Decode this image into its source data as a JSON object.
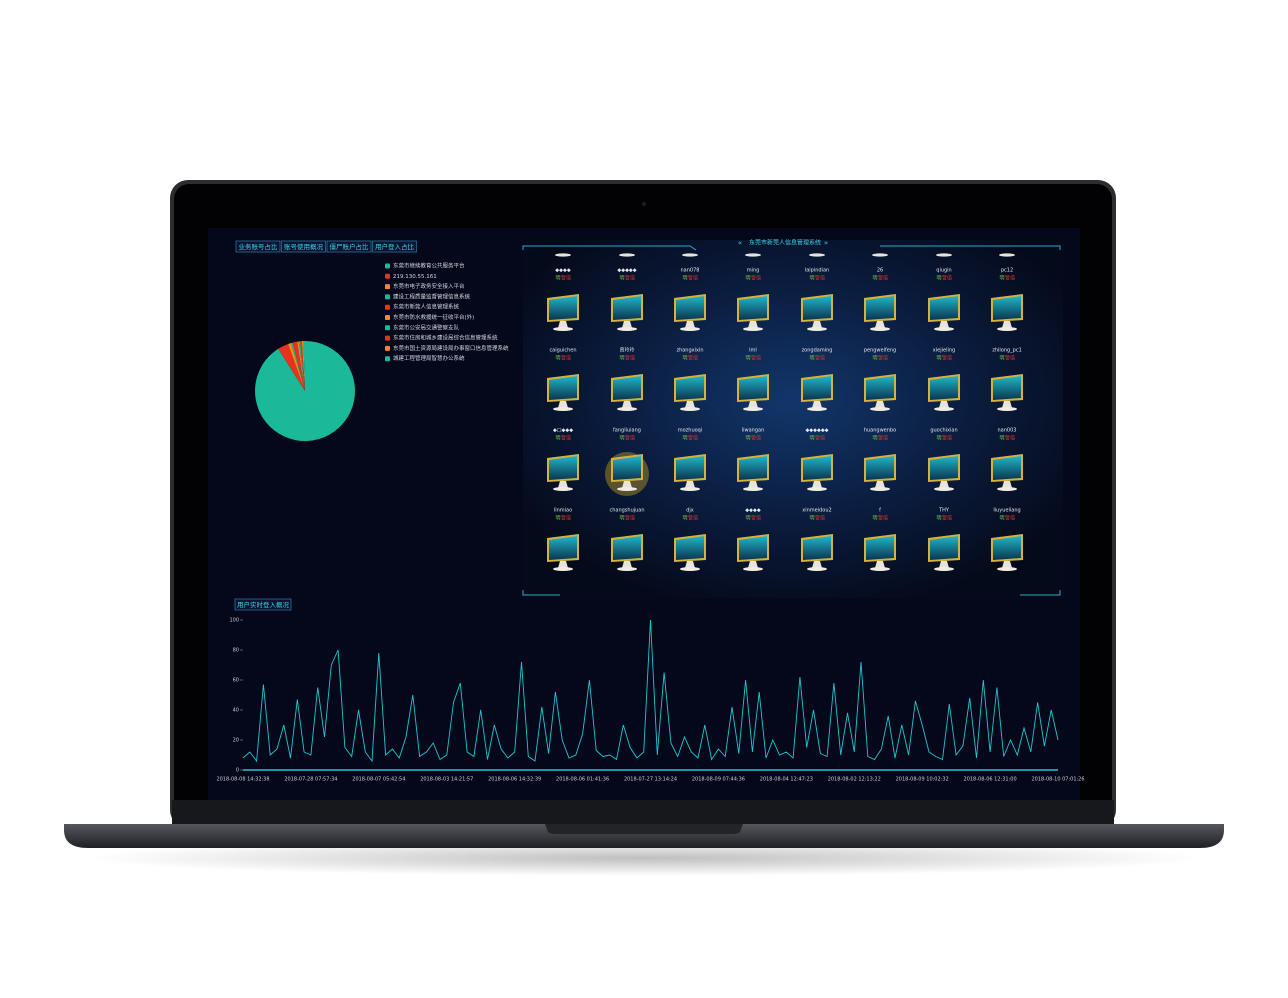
{
  "tabs": [
    "业务账号占比",
    "账号使用概况",
    "僵尸账户占比",
    "用户登入占比"
  ],
  "panel": {
    "title": "东莞市新莞人信息管理系统",
    "status_flag": "明",
    "status_alert": "警值",
    "computers": [
      "◆◆◆◆",
      "◆◆◆◆◆",
      "nan078",
      "ming",
      "laipindian",
      "26",
      "qiugin",
      "pc12",
      "caiguichen",
      "曾玲玲",
      "zhangxixin",
      "lml",
      "zongdaming",
      "pengweifeng",
      "xiejieling",
      "zhilong_pc1",
      "◆□◆◆◆",
      "fangliuiang",
      "mozhuoqi",
      "liwangan",
      "◆◆◆◆◆◆",
      "huangwenbo",
      "guochixian",
      "nan003",
      "linmiao",
      "changshujuan",
      "djx",
      "◆◆◆◆",
      "xinmeidou2",
      "f",
      "THY",
      "liuyueliang"
    ]
  },
  "chart_data": [
    {
      "type": "pie",
      "categories": [
        "东莞市继续教育公共服务平台",
        "219.130.55.161",
        "东莞市电子政务安全接入平台",
        "建设工程质量监督管理信息系统",
        "东莞市新莞人信息管理系统",
        "东莞市防水救援统一征收平台(外)",
        "东莞市公安局交通警察支队",
        "东莞市住房和城乡建设局综合信息管理系统",
        "东莞市国土资源局建设局办事窗口信息管理系统",
        "城建工程管理局智慧办公系统"
      ],
      "values": [
        91,
        3.5,
        1,
        0.5,
        1.5,
        0.5,
        0.5,
        0.5,
        0.5,
        0.5
      ],
      "colors": [
        "#1ab99a",
        "#e8321e",
        "#f08c1a",
        "#1ab99a",
        "#e8321e",
        "#f08c1a",
        "#1ab99a",
        "#e8321e",
        "#f08c1a",
        "#1ab99a"
      ]
    },
    {
      "type": "line",
      "title": "用户实时登入概况",
      "color": "#1fc8d0",
      "ylim": [
        0,
        100
      ],
      "yticks": [
        0,
        20,
        40,
        60,
        80,
        100
      ],
      "categories": [
        "2018-08-08 14:32:38",
        null,
        null,
        null,
        null,
        null,
        null,
        null,
        null,
        null,
        "2018-07-28 07:57:34",
        null,
        null,
        null,
        null,
        null,
        null,
        null,
        null,
        null,
        "2018-08-07 05:42:54",
        null,
        null,
        null,
        null,
        null,
        null,
        null,
        null,
        null,
        "2018-08-03 14:21:57",
        null,
        null,
        null,
        null,
        null,
        null,
        null,
        null,
        null,
        "2018-08-06 14:32:39",
        null,
        null,
        null,
        null,
        null,
        null,
        null,
        null,
        null,
        "2018-08-06 01:41:36",
        null,
        null,
        null,
        null,
        null,
        null,
        null,
        null,
        null,
        "2018-07-27 13:14:24",
        null,
        null,
        null,
        null,
        null,
        null,
        null,
        null,
        null,
        "2018-08-09 07:44:36",
        null,
        null,
        null,
        null,
        null,
        null,
        null,
        null,
        null,
        "2018-08-04 12:47:23",
        null,
        null,
        null,
        null,
        null,
        null,
        null,
        null,
        null,
        "2018-08-02 12:13:22",
        null,
        null,
        null,
        null,
        null,
        null,
        null,
        null,
        null,
        "2018-08-09 10:02:32",
        null,
        null,
        null,
        null,
        null,
        null,
        null,
        null,
        null,
        "2018-08-06 12:31:00",
        null,
        null,
        null,
        null,
        null,
        null,
        null,
        null,
        null,
        "2018-08-10 07:01:26"
      ],
      "values": [
        8,
        12,
        6,
        57,
        10,
        14,
        30,
        8,
        47,
        12,
        10,
        55,
        22,
        70,
        80,
        15,
        9,
        40,
        12,
        6,
        78,
        10,
        14,
        8,
        22,
        50,
        9,
        12,
        18,
        7,
        10,
        45,
        58,
        12,
        9,
        40,
        7,
        30,
        14,
        8,
        12,
        72,
        9,
        6,
        42,
        11,
        52,
        20,
        8,
        10,
        24,
        60,
        13,
        9,
        10,
        7,
        30,
        15,
        8,
        12,
        100,
        10,
        65,
        18,
        9,
        22,
        12,
        8,
        30,
        7,
        14,
        9,
        42,
        11,
        60,
        12,
        52,
        8,
        20,
        10,
        12,
        8,
        62,
        15,
        40,
        11,
        9,
        58,
        10,
        38,
        12,
        72,
        9,
        7,
        14,
        36,
        8,
        30,
        10,
        46,
        30,
        12,
        9,
        7,
        44,
        10,
        16,
        48,
        8,
        60,
        12,
        55,
        9,
        20,
        10,
        28,
        12,
        45,
        16,
        40,
        20
      ]
    }
  ]
}
